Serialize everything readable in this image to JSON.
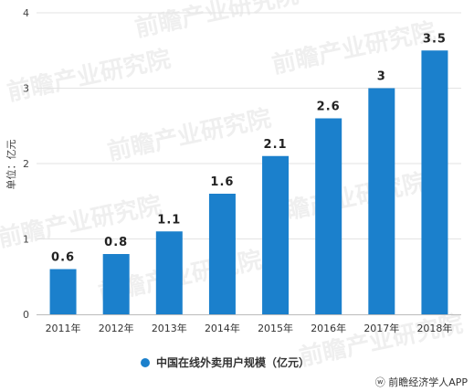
{
  "chart_data": {
    "type": "bar",
    "title": "",
    "xlabel": "",
    "ylabel": "单位：亿元",
    "categories": [
      "2011年",
      "2012年",
      "2013年",
      "2014年",
      "2015年",
      "2016年",
      "2017年",
      "2018年"
    ],
    "series": [
      {
        "name": "中国在线外卖用户规模（亿元）",
        "values": [
          0.6,
          0.8,
          1.1,
          1.6,
          2.1,
          2.6,
          3,
          3.5
        ]
      }
    ],
    "data_labels": [
      "0.6",
      "0.8",
      "1.1",
      "1.6",
      "2.1",
      "2.6",
      "3",
      "3.5"
    ],
    "ylim": [
      0,
      4
    ],
    "yticks": [
      0,
      1,
      2,
      3,
      4
    ],
    "grid": true,
    "legend_position": "bottom-center",
    "bar_color": "#1b80cc"
  },
  "credit": "前瞻经济学人APP",
  "watermark": "前瞻产业研究院"
}
